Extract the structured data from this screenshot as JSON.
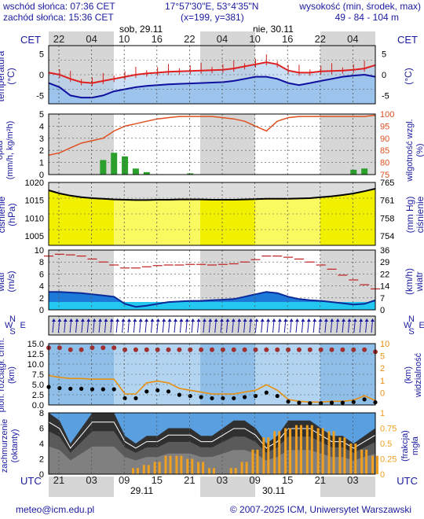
{
  "header": {
    "sunrise": "wschód słońca: 07:36 CET",
    "sunset": "zachód słońca: 15:36 CET",
    "coords": "17°57'30\"E, 53°4'35\"N",
    "grid": "(x=199, y=381)",
    "alt_title": "wysokość (min, środek, max)",
    "alt_values": "49 - 84 - 104 m"
  },
  "time_axis": {
    "cet_label": "CET",
    "cet_hours": [
      "22",
      "04",
      "10",
      "16",
      "22",
      "04",
      "10",
      "16",
      "22",
      "04"
    ],
    "utc_label": "UTC",
    "utc_hours": [
      "21",
      "03",
      "09",
      "15",
      "21",
      "03",
      "09",
      "15",
      "21",
      "03"
    ],
    "day1_top": "sob, 29.11",
    "day2_top": "nie, 30.11",
    "day1_bottom": "29.11",
    "day2_bottom": "30.11"
  },
  "panels": {
    "temperature": {
      "left": "temperatura\n(°C)",
      "right": "(°C)",
      "ticks": [
        "5",
        "0",
        "-5"
      ],
      "color_line": "#e02020"
    },
    "precip": {
      "left": "opad\n(mm/h, kg/m²h)",
      "right": "wilgotność wzgl.\n(%)",
      "ticks_left": [
        "5",
        "4",
        "3",
        "2",
        "1",
        "0"
      ],
      "ticks_right": [
        "100",
        "95",
        "90",
        "85",
        "80",
        "75"
      ]
    },
    "pressure": {
      "left": "ciśnienie\n(hPa)",
      "right": "(mm Hg)\nciśnienie",
      "ticks_left": [
        "1020",
        "1015",
        "1010",
        "1005"
      ],
      "ticks_right": [
        "765",
        "761",
        "758",
        "754"
      ]
    },
    "wind": {
      "left": "wiatr\n(m/s)",
      "right": "(km/h)\nwiatr",
      "ticks_left": [
        "10",
        "8",
        "6",
        "4",
        "2",
        "0"
      ],
      "ticks_right": [
        "36",
        "29",
        "22",
        "14",
        "7",
        "0"
      ]
    },
    "direction": {
      "left": "N\nW   E\nS",
      "right": "N\nW   E\nS"
    },
    "visibility": {
      "left": "pion. rozciągł. chm.\n(km)",
      "right": "(km)\nwidzialność",
      "ticks_left": [
        "15.0",
        "12.5",
        "10.0",
        "7.5",
        "5.0",
        "2.5",
        "0.0"
      ],
      "ticks_right": [
        "10",
        "5",
        "2",
        "1",
        "0"
      ]
    },
    "clouds": {
      "left": "zachmurzenie\n(oktanty)",
      "right": "(frakcja)\nmgła",
      "ticks_left": [
        "8",
        "6",
        "4",
        "2",
        "0"
      ],
      "ticks_right": [
        "1",
        "0.75",
        "0.5",
        "0.25",
        "0"
      ]
    }
  },
  "chart_data": [
    {
      "type": "line",
      "name": "temperature",
      "ylim": [
        -7,
        7
      ],
      "series": [
        {
          "name": "temperatura",
          "values": [
            0.5,
            0,
            -1,
            -1.8,
            -2,
            -1.5,
            -1,
            -0.5,
            0,
            0.3,
            0.5,
            0.7,
            0.8,
            0.9,
            1,
            1.1,
            1.2,
            1.5,
            2,
            2.5,
            3,
            2.5,
            1,
            0.5,
            0.5,
            0.8,
            0.9,
            1,
            1.2,
            1.5,
            2.3
          ]
        },
        {
          "name": "odczuwalna",
          "values": [
            -2,
            -3,
            -5,
            -5.5,
            -5.5,
            -5,
            -4,
            -3.5,
            -3,
            -2.7,
            -2.5,
            -2.3,
            -2.2,
            -2.1,
            -2,
            -1.9,
            -1.8,
            -1.5,
            -1,
            -0.5,
            -0.5,
            -1,
            -2,
            -2.5,
            -2,
            -1.5,
            -1,
            -0.5,
            -0.2,
            0,
            -0.5
          ]
        }
      ]
    },
    {
      "type": "line",
      "name": "humidity",
      "ylim": [
        75,
        100
      ],
      "values": [
        83,
        84,
        86,
        88,
        89,
        90,
        93,
        95,
        96,
        97,
        98,
        98.5,
        99,
        99,
        99,
        99,
        98.5,
        98,
        97,
        95,
        93,
        97,
        98.5,
        99,
        99,
        99,
        99,
        99,
        99,
        99,
        99.5
      ]
    },
    {
      "type": "bar",
      "name": "precip",
      "ylim": [
        0,
        5
      ],
      "values": [
        0,
        0,
        0,
        0,
        0,
        1.2,
        1.8,
        1.5,
        0.5,
        0.2,
        0,
        0,
        0,
        0.1,
        0,
        0,
        0,
        0,
        0,
        0,
        0,
        0,
        0,
        0,
        0,
        0,
        0,
        0,
        0.4,
        0.5,
        0
      ]
    },
    {
      "type": "line",
      "name": "pressure",
      "ylim": [
        1000,
        1020
      ],
      "values": [
        1017.5,
        1016.5,
        1015.8,
        1015.3,
        1015,
        1014.8,
        1014.6,
        1014.5,
        1014.4,
        1014.4,
        1014.5,
        1014.5,
        1014.6,
        1014.6,
        1014.6,
        1014.5,
        1014.5,
        1014.5,
        1014.6,
        1014.7,
        1014.8,
        1014.8,
        1014.8,
        1014.9,
        1015,
        1015.3,
        1015.6,
        1016,
        1016.5,
        1017.2,
        1018
      ]
    },
    {
      "type": "area",
      "name": "wind",
      "ylim": [
        0,
        10
      ],
      "series": [
        {
          "name": "wiatr",
          "values": [
            3,
            3,
            2.9,
            2.8,
            2.6,
            2.4,
            2.2,
            1,
            0.5,
            0.7,
            1,
            1.3,
            1.4,
            1.5,
            1.5,
            1.6,
            1.7,
            1.8,
            2.2,
            2.6,
            3,
            2.8,
            2.2,
            1.8,
            1.6,
            1.5,
            1.3,
            1.1,
            0.9,
            1,
            1.6
          ]
        },
        {
          "name": "porywy",
          "values": [
            9,
            9.3,
            9.2,
            9,
            8.5,
            8,
            7.5,
            7,
            7,
            7.2,
            7.4,
            7.5,
            7.5,
            7.6,
            7.6,
            7.5,
            7.6,
            7.7,
            8,
            8.4,
            9,
            9,
            8.8,
            8.5,
            8,
            7.5,
            6.8,
            5.8,
            5,
            4.2,
            3.5
          ]
        }
      ]
    },
    {
      "type": "scatter",
      "name": "visibility",
      "ylim": [
        0,
        15
      ],
      "series": [
        {
          "name": "chmury",
          "values": [
            14,
            14,
            13.5,
            13.5,
            14,
            14,
            14,
            13.5,
            13.5,
            13.5,
            13.5,
            13.5,
            13.5,
            13.5,
            13.5,
            13.5,
            13.5,
            13.5,
            13.5,
            13.5,
            13.5,
            13.5,
            13.5,
            13.5,
            13.5,
            13.5,
            13.5,
            13.5,
            13.5,
            13.5,
            13
          ]
        },
        {
          "name": "widzialność",
          "values": [
            8,
            7.5,
            7.2,
            7.2,
            7,
            7,
            7,
            3,
            3,
            6,
            6.5,
            6,
            4.5,
            4,
            3.5,
            3,
            3,
            3,
            3.5,
            4,
            5.5,
            4,
            1.5,
            1,
            0.8,
            0.8,
            1,
            1,
            1.3,
            2.5,
            1.2
          ]
        }
      ]
    },
    {
      "type": "area",
      "name": "clouds",
      "ylim": [
        0,
        8
      ],
      "series": [
        {
          "name": "zachmurzenie",
          "values": [
            8,
            7,
            4,
            6,
            8,
            8,
            8,
            5,
            4,
            5,
            5,
            6,
            6,
            6,
            5,
            5,
            6,
            7,
            7,
            6,
            4,
            5,
            7,
            7,
            7,
            6,
            5,
            5,
            4,
            5,
            6
          ]
        },
        {
          "name": "mgła",
          "values": [
            0,
            0,
            0,
            0,
            0,
            0,
            0,
            0,
            0.1,
            0.15,
            0.2,
            0.3,
            0.3,
            0.25,
            0.2,
            0.1,
            0,
            0.1,
            0.2,
            0.4,
            0.6,
            0.7,
            0.75,
            0.8,
            0.8,
            0.75,
            0.7,
            0.6,
            0.5,
            0.4,
            0.3
          ]
        }
      ]
    }
  ],
  "footer": {
    "email": "meteo@icm.edu.pl",
    "copyright": "© 2007-2025 ICM, Uniwersytet Warszawski"
  }
}
